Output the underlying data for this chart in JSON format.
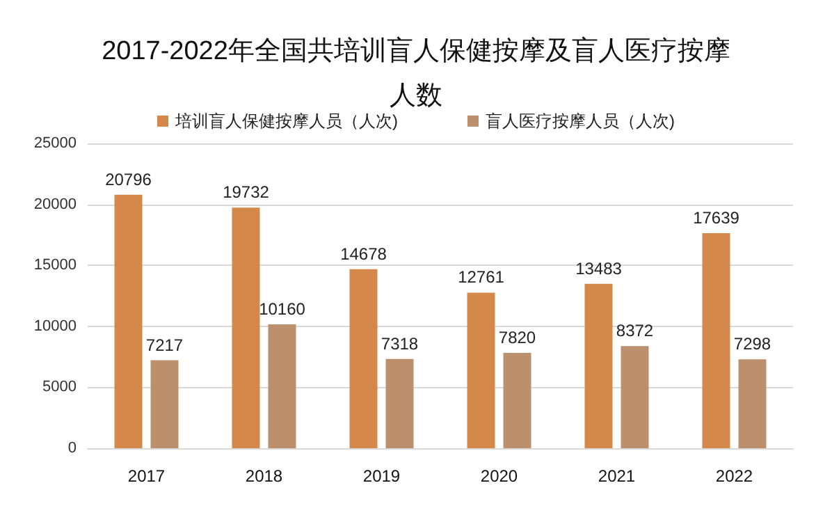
{
  "chart_data": {
    "type": "bar",
    "title": "2017-2022年全国共培训盲人保健按摩及盲人医疗按摩人数",
    "categories": [
      "2017",
      "2018",
      "2019",
      "2020",
      "2021",
      "2022"
    ],
    "series": [
      {
        "name": "培训盲人保健按摩人员（人次)",
        "color": "#d4894a",
        "values": [
          20796,
          19732,
          14678,
          12761,
          13483,
          17639
        ]
      },
      {
        "name": "盲人医疗按摩人员（人次)",
        "color": "#bc8f6d",
        "values": [
          7217,
          10160,
          7318,
          7820,
          8372,
          7298
        ]
      }
    ],
    "ylim": [
      0,
      25000
    ],
    "yticks": [
      0,
      5000,
      10000,
      15000,
      20000,
      25000
    ],
    "grid": "y",
    "legend": "top",
    "data_labels": true
  }
}
